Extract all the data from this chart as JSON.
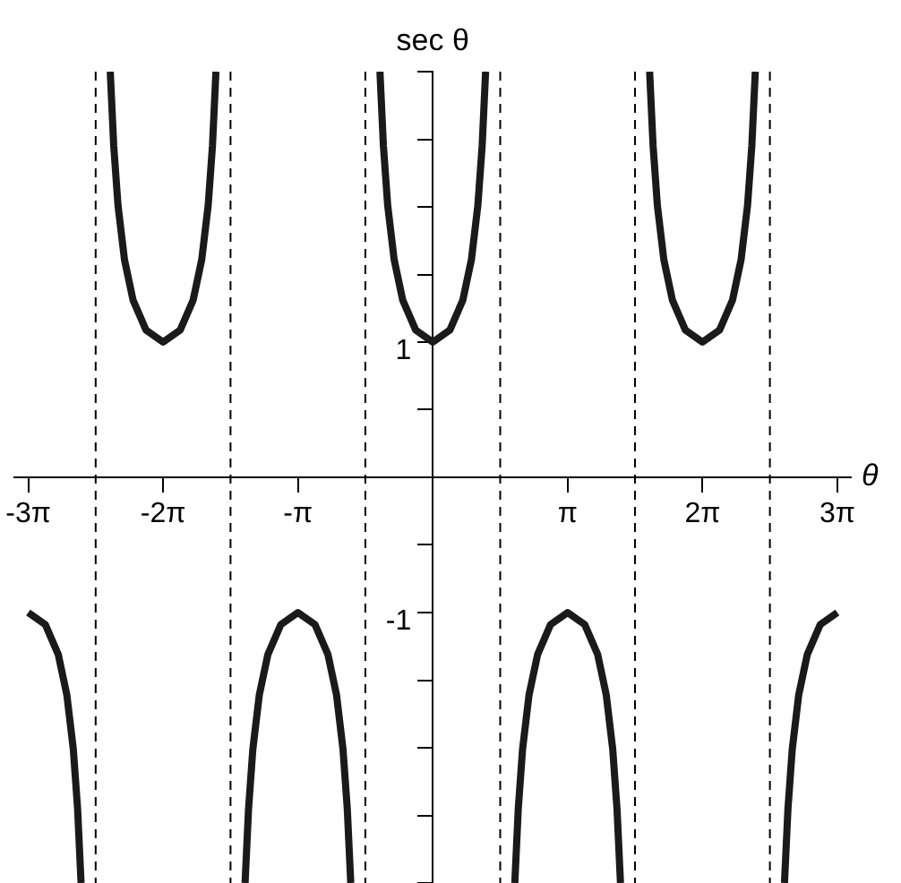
{
  "chart_data": {
    "type": "line",
    "xlabel": "θ",
    "ylabel": "sec θ",
    "xlim": [
      -9.74,
      9.74
    ],
    "ylim": [
      -3,
      3
    ],
    "xticks": [
      {
        "value": -9.425,
        "label": "-3π"
      },
      {
        "value": -6.283,
        "label": "-2π"
      },
      {
        "value": -3.142,
        "label": "-π"
      },
      {
        "value": 3.142,
        "label": "π"
      },
      {
        "value": 6.283,
        "label": "2π"
      },
      {
        "value": 9.425,
        "label": "3π"
      }
    ],
    "yticks": [
      {
        "value": -3,
        "label": null
      },
      {
        "value": -2.5,
        "label": null
      },
      {
        "value": -2,
        "label": null
      },
      {
        "value": -1.5,
        "label": null
      },
      -1,
      {
        "value": -0.5,
        "label": null
      },
      {
        "value": 0.5,
        "label": null
      },
      1,
      {
        "value": 1.5,
        "label": null
      },
      {
        "value": 2,
        "label": null
      },
      {
        "value": 2.5,
        "label": null
      },
      {
        "value": 3,
        "label": null
      }
    ],
    "grid": false,
    "legend": false,
    "marker": "none",
    "line_style": "solid",
    "ref_lines": [
      {
        "axis": "x",
        "value": -7.854,
        "color": "#000000",
        "line_style": "dashed"
      },
      {
        "axis": "x",
        "value": -4.712,
        "color": "#000000",
        "line_style": "dashed"
      },
      {
        "axis": "x",
        "value": -1.571,
        "color": "#000000",
        "line_style": "dashed"
      },
      {
        "axis": "x",
        "value": 1.571,
        "color": "#000000",
        "line_style": "dashed"
      },
      {
        "axis": "x",
        "value": 4.712,
        "color": "#000000",
        "line_style": "dashed"
      },
      {
        "axis": "x",
        "value": 7.854,
        "color": "#000000",
        "line_style": "dashed"
      }
    ],
    "series": [
      {
        "color": "#1a1a1a",
        "x": [
          -9.425,
          -9.025,
          -8.725,
          -8.525,
          -8.375,
          -8.275,
          -8.194,
          -7.854,
          -7.514,
          -7.433,
          -7.333,
          -7.183,
          -6.983,
          -6.683,
          -6.283,
          -5.883,
          -5.583,
          -5.383,
          -5.233,
          -5.133,
          -5.052,
          -4.712,
          -4.373,
          -4.292,
          -4.192,
          -4.042,
          -3.842,
          -3.542,
          -3.142,
          -2.742,
          -2.442,
          -2.242,
          -2.092,
          -1.992,
          -1.911,
          -1.571,
          -1.231,
          -1.15,
          -1.05,
          -0.9,
          -0.7,
          -0.4,
          0,
          0.4,
          0.7,
          0.9,
          1.05,
          1.15,
          1.231,
          1.571,
          1.911,
          1.992,
          2.092,
          2.242,
          2.442,
          2.742,
          3.142,
          3.542,
          3.842,
          4.042,
          4.192,
          4.292,
          4.373,
          4.712,
          5.052,
          5.133,
          5.233,
          5.383,
          5.583,
          5.883,
          6.283,
          6.683,
          6.983,
          7.183,
          7.333,
          7.433,
          7.514,
          7.854,
          8.194,
          8.275,
          8.375,
          8.525,
          8.725,
          9.025,
          9.425
        ],
        "values": [
          -1,
          -1.09,
          -1.31,
          -1.61,
          -2.01,
          -2.45,
          -3,
          null,
          3,
          2.45,
          2.01,
          1.61,
          1.31,
          1.09,
          1,
          1.09,
          1.31,
          1.61,
          2.01,
          2.45,
          3,
          null,
          -3,
          -2.45,
          -2.01,
          -1.61,
          -1.31,
          -1.09,
          -1,
          -1.09,
          -1.31,
          -1.61,
          -2.01,
          -2.45,
          -3,
          null,
          3,
          2.45,
          2.01,
          1.61,
          1.31,
          1.09,
          1,
          1.09,
          1.31,
          1.61,
          2.01,
          2.45,
          3,
          null,
          -3,
          -2.45,
          -2.01,
          -1.61,
          -1.31,
          -1.09,
          -1,
          -1.09,
          -1.31,
          -1.61,
          -2.01,
          -2.45,
          -3,
          null,
          3,
          2.45,
          2.01,
          1.61,
          1.31,
          1.09,
          1,
          1.09,
          1.31,
          1.61,
          2.01,
          2.45,
          3,
          null,
          -3,
          -2.45,
          -2.01,
          -1.61,
          -1.31,
          -1.09,
          -1
        ]
      }
    ]
  }
}
